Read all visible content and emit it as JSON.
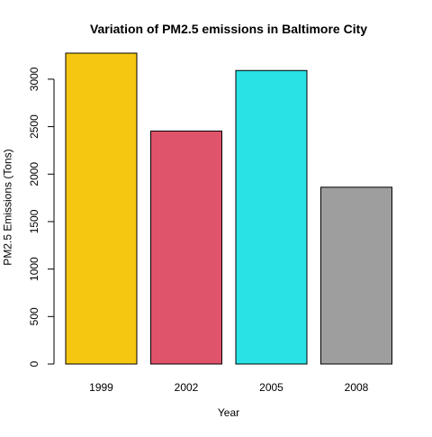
{
  "chart_data": {
    "type": "bar",
    "title": "Variation of PM2.5 emissions in Baltimore City",
    "xlabel": "Year",
    "ylabel": "PM2.5 Emissions (Tons)",
    "categories": [
      "1999",
      "2002",
      "2005",
      "2008"
    ],
    "values": [
      3274.18,
      2453.92,
      3091.35,
      1862.28
    ],
    "colors": [
      "#F5C710",
      "#DF536B",
      "#28E2E5",
      "#9E9E9E"
    ],
    "ylim": [
      0,
      3274.18
    ],
    "yticks": [
      0,
      500,
      1000,
      1500,
      2000,
      2500,
      3000
    ],
    "grid": false,
    "legend": "none"
  }
}
